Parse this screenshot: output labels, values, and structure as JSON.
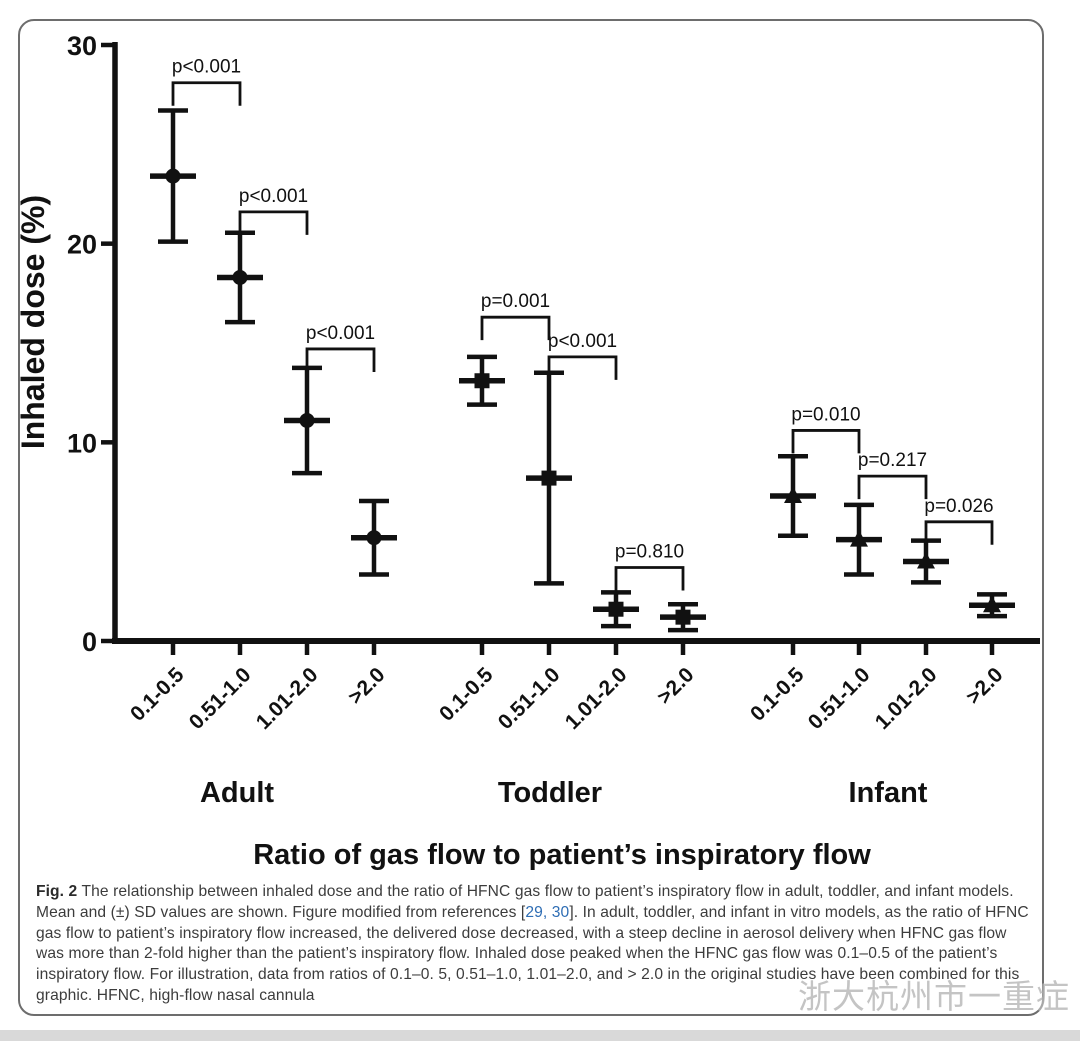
{
  "figure": {
    "caption": {
      "label": "Fig. 2",
      "text_before_link": " The relationship between inhaled dose and the ratio of HFNC gas flow to patient’s inspiratory flow in adult, toddler, and infant models. Mean and (±) SD values are shown. Figure modified from references [",
      "link": "29, 30",
      "text_after_link": "]. In adult, toddler, and infant in vitro models, as the ratio of HFNC gas flow to patient’s inspiratory flow increased, the delivered dose decreased, with a steep decline in aerosol delivery when HFNC gas flow was more than 2-fold higher than the patient’s inspiratory flow. Inhaled dose peaked when the HFNC gas flow was 0.1–0.5 of the patient’s inspiratory flow. For illustration, data from ratios of 0.1–0. 5, 0.51–1.0, 1.01–2.0, and > 2.0 in the original studies have been combined for this graphic. HFNC, high-flow nasal cannula",
      "link_color": "#2e6db4"
    },
    "watermark": {
      "icon": "wechat-icon",
      "text": "浙大杭州市一重症"
    }
  },
  "chart_data": {
    "type": "scatter",
    "title": "",
    "xlabel": "Ratio of gas flow to patient’s inspiratory flow",
    "ylabel": "Inhaled dose (%)",
    "ylim": [
      0,
      30
    ],
    "yticks": [
      0,
      10,
      20,
      30
    ],
    "grid": false,
    "legend": "none",
    "marker_color": "#111111",
    "categories": [
      "0.1-0.5",
      "0.51-1.0",
      "1.01-2.0",
      ">2.0"
    ],
    "groups": [
      {
        "name": "Adult",
        "marker": "circle",
        "means": [
          23.4,
          18.3,
          11.1,
          5.2
        ],
        "sd": [
          3.3,
          2.25,
          2.65,
          1.85
        ]
      },
      {
        "name": "Toddler",
        "marker": "square",
        "means": [
          13.1,
          8.2,
          1.6,
          1.2
        ],
        "sd": [
          1.2,
          5.3,
          0.85,
          0.65
        ]
      },
      {
        "name": "Infant",
        "marker": "triangle",
        "means": [
          7.3,
          5.1,
          4.0,
          1.8
        ],
        "sd": [
          2.0,
          1.75,
          1.05,
          0.55
        ]
      }
    ],
    "comparisons": [
      {
        "group": 0,
        "pair": [
          0,
          1
        ],
        "label": "p<0.001",
        "y": 28.1
      },
      {
        "group": 0,
        "pair": [
          1,
          2
        ],
        "label": "p<0.001",
        "y": 21.6
      },
      {
        "group": 0,
        "pair": [
          2,
          3
        ],
        "label": "p<0.001",
        "y": 14.7
      },
      {
        "group": 1,
        "pair": [
          0,
          1
        ],
        "label": "p=0.001",
        "y": 16.3
      },
      {
        "group": 1,
        "pair": [
          1,
          2
        ],
        "label": "p<0.001",
        "y": 14.3
      },
      {
        "group": 1,
        "pair": [
          2,
          3
        ],
        "label": "p=0.810",
        "y": 3.7
      },
      {
        "group": 2,
        "pair": [
          0,
          1
        ],
        "label": "p=0.010",
        "y": 10.6
      },
      {
        "group": 2,
        "pair": [
          1,
          2
        ],
        "label": "p=0.217",
        "y": 8.3
      },
      {
        "group": 2,
        "pair": [
          2,
          3
        ],
        "label": "p=0.026",
        "y": 6.0
      }
    ]
  }
}
